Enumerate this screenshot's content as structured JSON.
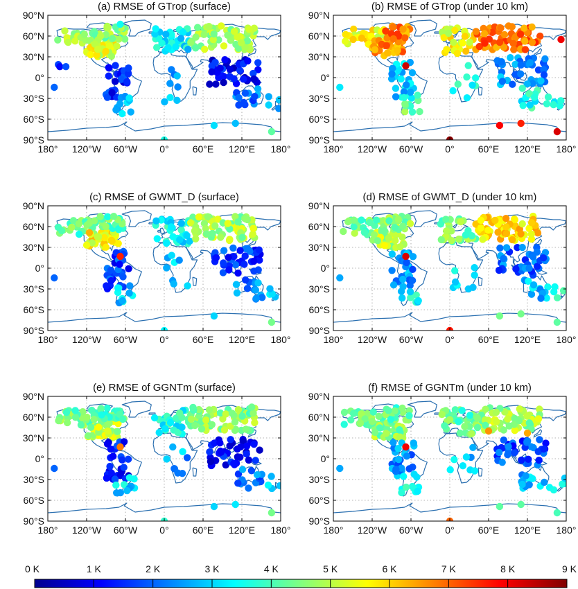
{
  "colors": {
    "coastline": "#2a6fb0",
    "grid": "#9a9a9a",
    "colormap": [
      "#00008f",
      "#0000ff",
      "#0080ff",
      "#00ffff",
      "#80ff80",
      "#ffff00",
      "#ff8000",
      "#ff0000",
      "#800000"
    ]
  },
  "axes_labels": {
    "lat_ticks": [
      "90°N",
      "60°N",
      "30°N",
      "0°",
      "30°S",
      "60°S",
      "90°S"
    ],
    "lon_ticks": [
      "180°",
      "120°W",
      "60°W",
      "0°",
      "60°E",
      "120°E",
      "180°"
    ]
  },
  "colorbar": {
    "labels": [
      "0 K",
      "1 K",
      "2 K",
      "3 K",
      "4 K",
      "5 K",
      "6 K",
      "7 K",
      "8 K",
      "9 K"
    ],
    "range": [
      0,
      9
    ],
    "unit": "K"
  },
  "chart_data": [
    {
      "type": "scatter",
      "panel": "a",
      "title": "(a) RMSE of GTrop (surface)",
      "xlim": [
        -180,
        180
      ],
      "ylim": [
        -90,
        90
      ],
      "grid": true,
      "regions": [
        {
          "lon": [
            -165,
            -100
          ],
          "lat": [
            48,
            70
          ],
          "value": 4.8,
          "n": 30
        },
        {
          "lon": [
            -120,
            -70
          ],
          "lat": [
            30,
            55
          ],
          "value": 5.3,
          "n": 40
        },
        {
          "lon": [
            -100,
            -60
          ],
          "lat": [
            55,
            75
          ],
          "value": 4.6,
          "n": 22
        },
        {
          "lon": [
            -90,
            -55
          ],
          "lat": [
            -30,
            25
          ],
          "value": 1.3,
          "n": 28
        },
        {
          "lon": [
            -75,
            -45
          ],
          "lat": [
            -50,
            -25
          ],
          "value": 3.0,
          "n": 10
        },
        {
          "lon": [
            -170,
            -150
          ],
          "lat": [
            15,
            25
          ],
          "value": 1.8,
          "n": 3
        },
        {
          "lon": [
            -15,
            40
          ],
          "lat": [
            35,
            72
          ],
          "value": 3.3,
          "n": 30
        },
        {
          "lon": [
            40,
            140
          ],
          "lat": [
            40,
            75
          ],
          "value": 4.7,
          "n": 70
        },
        {
          "lon": [
            0,
            40
          ],
          "lat": [
            -35,
            20
          ],
          "value": 2.8,
          "n": 8
        },
        {
          "lon": [
            70,
            150
          ],
          "lat": [
            -10,
            30
          ],
          "value": 1.1,
          "n": 40
        },
        {
          "lon": [
            110,
            155
          ],
          "lat": [
            -45,
            -15
          ],
          "value": 2.2,
          "n": 14
        },
        {
          "lon": [
            160,
            180
          ],
          "lat": [
            -45,
            -25
          ],
          "value": 3.0,
          "n": 4
        }
      ],
      "stations": [
        {
          "lon": -170,
          "lat": -14,
          "value": 2.0
        },
        {
          "lon": -65,
          "lat": -52,
          "value": 3.3
        },
        {
          "lon": 0,
          "lat": -90,
          "value": 3.6
        },
        {
          "lon": 77,
          "lat": -69,
          "value": 3.1
        },
        {
          "lon": 110,
          "lat": -66,
          "value": 2.8
        },
        {
          "lon": 166,
          "lat": -78,
          "value": 4.2
        },
        {
          "lon": -68,
          "lat": 77,
          "value": 3.5
        }
      ]
    },
    {
      "type": "scatter",
      "panel": "b",
      "title": "(b) RMSE of GTrop (under 10 km)",
      "xlim": [
        -180,
        180
      ],
      "ylim": [
        -90,
        90
      ],
      "grid": true,
      "regions": [
        {
          "lon": [
            -165,
            -100
          ],
          "lat": [
            48,
            70
          ],
          "value": 5.6,
          "n": 30
        },
        {
          "lon": [
            -120,
            -70
          ],
          "lat": [
            30,
            55
          ],
          "value": 6.6,
          "n": 40
        },
        {
          "lon": [
            -100,
            -60
          ],
          "lat": [
            55,
            75
          ],
          "value": 6.8,
          "n": 22
        },
        {
          "lon": [
            -90,
            -55
          ],
          "lat": [
            -30,
            25
          ],
          "value": 3.0,
          "n": 28
        },
        {
          "lon": [
            -75,
            -45
          ],
          "lat": [
            -50,
            -25
          ],
          "value": 4.3,
          "n": 10
        },
        {
          "lon": [
            -15,
            40
          ],
          "lat": [
            35,
            72
          ],
          "value": 5.5,
          "n": 30
        },
        {
          "lon": [
            40,
            140
          ],
          "lat": [
            40,
            75
          ],
          "value": 6.9,
          "n": 70
        },
        {
          "lon": [
            0,
            40
          ],
          "lat": [
            -35,
            20
          ],
          "value": 3.6,
          "n": 8
        },
        {
          "lon": [
            70,
            150
          ],
          "lat": [
            -10,
            30
          ],
          "value": 2.4,
          "n": 40
        },
        {
          "lon": [
            110,
            155
          ],
          "lat": [
            -45,
            -15
          ],
          "value": 3.6,
          "n": 14
        },
        {
          "lon": [
            160,
            180
          ],
          "lat": [
            -45,
            -25
          ],
          "value": 3.8,
          "n": 4
        }
      ],
      "stations": [
        {
          "lon": -170,
          "lat": -14,
          "value": 3.2
        },
        {
          "lon": -68,
          "lat": 17,
          "value": 8.3
        },
        {
          "lon": 0,
          "lat": -90,
          "value": 8.9
        },
        {
          "lon": 77,
          "lat": -69,
          "value": 7.9
        },
        {
          "lon": 110,
          "lat": -66,
          "value": 7.6
        },
        {
          "lon": 166,
          "lat": -78,
          "value": 8.2
        },
        {
          "lon": 172,
          "lat": 55,
          "value": 8.0
        }
      ]
    },
    {
      "type": "scatter",
      "panel": "c",
      "title": "(c) RMSE of GWMT_D (surface)",
      "xlim": [
        -180,
        180
      ],
      "ylim": [
        -90,
        90
      ],
      "grid": true,
      "regions": [
        {
          "lon": [
            -165,
            -100
          ],
          "lat": [
            48,
            70
          ],
          "value": 4.2,
          "n": 30
        },
        {
          "lon": [
            -120,
            -70
          ],
          "lat": [
            30,
            55
          ],
          "value": 5.6,
          "n": 40
        },
        {
          "lon": [
            -100,
            -60
          ],
          "lat": [
            55,
            75
          ],
          "value": 4.2,
          "n": 22
        },
        {
          "lon": [
            -90,
            -55
          ],
          "lat": [
            -30,
            25
          ],
          "value": 1.6,
          "n": 28
        },
        {
          "lon": [
            -75,
            -45
          ],
          "lat": [
            -50,
            -25
          ],
          "value": 3.0,
          "n": 10
        },
        {
          "lon": [
            -15,
            40
          ],
          "lat": [
            35,
            72
          ],
          "value": 3.4,
          "n": 30
        },
        {
          "lon": [
            40,
            140
          ],
          "lat": [
            40,
            75
          ],
          "value": 4.8,
          "n": 70
        },
        {
          "lon": [
            0,
            40
          ],
          "lat": [
            -35,
            20
          ],
          "value": 3.0,
          "n": 8
        },
        {
          "lon": [
            70,
            150
          ],
          "lat": [
            -10,
            30
          ],
          "value": 1.6,
          "n": 40
        },
        {
          "lon": [
            110,
            155
          ],
          "lat": [
            -45,
            -15
          ],
          "value": 2.2,
          "n": 14
        },
        {
          "lon": [
            160,
            180
          ],
          "lat": [
            -45,
            -25
          ],
          "value": 3.0,
          "n": 4
        }
      ],
      "stations": [
        {
          "lon": -170,
          "lat": -14,
          "value": 2.0
        },
        {
          "lon": -68,
          "lat": 17,
          "value": 7.6
        },
        {
          "lon": 0,
          "lat": -90,
          "value": 3.3
        },
        {
          "lon": 77,
          "lat": -69,
          "value": 3.0
        },
        {
          "lon": 166,
          "lat": -78,
          "value": 4.4
        }
      ]
    },
    {
      "type": "scatter",
      "panel": "d",
      "title": "(d) RMSE of GWMT_D (under 10 km)",
      "xlim": [
        -180,
        180
      ],
      "ylim": [
        -90,
        90
      ],
      "grid": true,
      "regions": [
        {
          "lon": [
            -165,
            -100
          ],
          "lat": [
            48,
            70
          ],
          "value": 4.4,
          "n": 30
        },
        {
          "lon": [
            -120,
            -70
          ],
          "lat": [
            30,
            55
          ],
          "value": 5.0,
          "n": 40
        },
        {
          "lon": [
            -100,
            -60
          ],
          "lat": [
            55,
            75
          ],
          "value": 4.6,
          "n": 22
        },
        {
          "lon": [
            -90,
            -55
          ],
          "lat": [
            -30,
            25
          ],
          "value": 2.4,
          "n": 28
        },
        {
          "lon": [
            -75,
            -45
          ],
          "lat": [
            -50,
            -25
          ],
          "value": 3.4,
          "n": 10
        },
        {
          "lon": [
            -15,
            40
          ],
          "lat": [
            35,
            72
          ],
          "value": 4.4,
          "n": 30
        },
        {
          "lon": [
            40,
            140
          ],
          "lat": [
            40,
            75
          ],
          "value": 5.9,
          "n": 70
        },
        {
          "lon": [
            0,
            40
          ],
          "lat": [
            -35,
            20
          ],
          "value": 3.0,
          "n": 8
        },
        {
          "lon": [
            70,
            150
          ],
          "lat": [
            -10,
            30
          ],
          "value": 2.0,
          "n": 40
        },
        {
          "lon": [
            110,
            155
          ],
          "lat": [
            -45,
            -15
          ],
          "value": 2.8,
          "n": 14
        },
        {
          "lon": [
            160,
            180
          ],
          "lat": [
            -45,
            -25
          ],
          "value": 3.6,
          "n": 4
        }
      ],
      "stations": [
        {
          "lon": -170,
          "lat": -14,
          "value": 2.6
        },
        {
          "lon": -68,
          "lat": 17,
          "value": 8.2
        },
        {
          "lon": 0,
          "lat": -90,
          "value": 7.7
        },
        {
          "lon": 77,
          "lat": -69,
          "value": 4.4
        },
        {
          "lon": 110,
          "lat": -66,
          "value": 4.4
        },
        {
          "lon": 166,
          "lat": -78,
          "value": 4.2
        }
      ]
    },
    {
      "type": "scatter",
      "panel": "e",
      "title": "(e) RMSE of GGNTm (surface)",
      "xlim": [
        -180,
        180
      ],
      "ylim": [
        -90,
        90
      ],
      "grid": true,
      "regions": [
        {
          "lon": [
            -165,
            -100
          ],
          "lat": [
            48,
            70
          ],
          "value": 4.4,
          "n": 30
        },
        {
          "lon": [
            -120,
            -70
          ],
          "lat": [
            30,
            55
          ],
          "value": 5.0,
          "n": 40
        },
        {
          "lon": [
            -100,
            -60
          ],
          "lat": [
            55,
            75
          ],
          "value": 4.2,
          "n": 22
        },
        {
          "lon": [
            -90,
            -55
          ],
          "lat": [
            -30,
            25
          ],
          "value": 1.3,
          "n": 28
        },
        {
          "lon": [
            -75,
            -45
          ],
          "lat": [
            -50,
            -25
          ],
          "value": 3.0,
          "n": 10
        },
        {
          "lon": [
            -15,
            40
          ],
          "lat": [
            35,
            72
          ],
          "value": 3.6,
          "n": 30
        },
        {
          "lon": [
            40,
            140
          ],
          "lat": [
            40,
            75
          ],
          "value": 4.6,
          "n": 70
        },
        {
          "lon": [
            0,
            40
          ],
          "lat": [
            -35,
            20
          ],
          "value": 2.6,
          "n": 8
        },
        {
          "lon": [
            70,
            150
          ],
          "lat": [
            -10,
            30
          ],
          "value": 1.1,
          "n": 40
        },
        {
          "lon": [
            110,
            155
          ],
          "lat": [
            -45,
            -15
          ],
          "value": 2.2,
          "n": 14
        },
        {
          "lon": [
            160,
            180
          ],
          "lat": [
            -45,
            -25
          ],
          "value": 2.8,
          "n": 4
        }
      ],
      "stations": [
        {
          "lon": -170,
          "lat": -14,
          "value": 2.0
        },
        {
          "lon": -68,
          "lat": 17,
          "value": 6.8
        },
        {
          "lon": 0,
          "lat": -90,
          "value": 3.8
        },
        {
          "lon": 77,
          "lat": -69,
          "value": 3.0
        },
        {
          "lon": 110,
          "lat": -66,
          "value": 3.2
        },
        {
          "lon": 166,
          "lat": -78,
          "value": 4.4
        }
      ]
    },
    {
      "type": "scatter",
      "panel": "f",
      "title": "(f) RMSE of GGNTm (under 10 km)",
      "xlim": [
        -180,
        180
      ],
      "ylim": [
        -90,
        90
      ],
      "grid": true,
      "regions": [
        {
          "lon": [
            -165,
            -100
          ],
          "lat": [
            48,
            70
          ],
          "value": 4.2,
          "n": 30
        },
        {
          "lon": [
            -120,
            -70
          ],
          "lat": [
            30,
            55
          ],
          "value": 4.6,
          "n": 40
        },
        {
          "lon": [
            -100,
            -60
          ],
          "lat": [
            55,
            75
          ],
          "value": 4.2,
          "n": 22
        },
        {
          "lon": [
            -90,
            -55
          ],
          "lat": [
            -30,
            25
          ],
          "value": 2.4,
          "n": 28
        },
        {
          "lon": [
            -75,
            -45
          ],
          "lat": [
            -50,
            -25
          ],
          "value": 3.4,
          "n": 10
        },
        {
          "lon": [
            -15,
            40
          ],
          "lat": [
            35,
            72
          ],
          "value": 4.2,
          "n": 30
        },
        {
          "lon": [
            40,
            140
          ],
          "lat": [
            40,
            75
          ],
          "value": 4.8,
          "n": 70
        },
        {
          "lon": [
            0,
            40
          ],
          "lat": [
            -35,
            20
          ],
          "value": 2.8,
          "n": 8
        },
        {
          "lon": [
            70,
            150
          ],
          "lat": [
            -10,
            30
          ],
          "value": 1.8,
          "n": 40
        },
        {
          "lon": [
            110,
            155
          ],
          "lat": [
            -45,
            -15
          ],
          "value": 2.8,
          "n": 14
        },
        {
          "lon": [
            160,
            180
          ],
          "lat": [
            -45,
            -25
          ],
          "value": 3.4,
          "n": 4
        }
      ],
      "stations": [
        {
          "lon": -170,
          "lat": -14,
          "value": 2.6
        },
        {
          "lon": -68,
          "lat": 17,
          "value": 8.0
        },
        {
          "lon": 0,
          "lat": -90,
          "value": 7.0
        },
        {
          "lon": 77,
          "lat": -69,
          "value": 4.2
        },
        {
          "lon": 110,
          "lat": -66,
          "value": 4.2
        },
        {
          "lon": 166,
          "lat": -78,
          "value": 4.0
        },
        {
          "lon": 60,
          "lat": 40,
          "value": 6.6
        },
        {
          "lon": 120,
          "lat": 37,
          "value": 6.4
        }
      ]
    }
  ]
}
